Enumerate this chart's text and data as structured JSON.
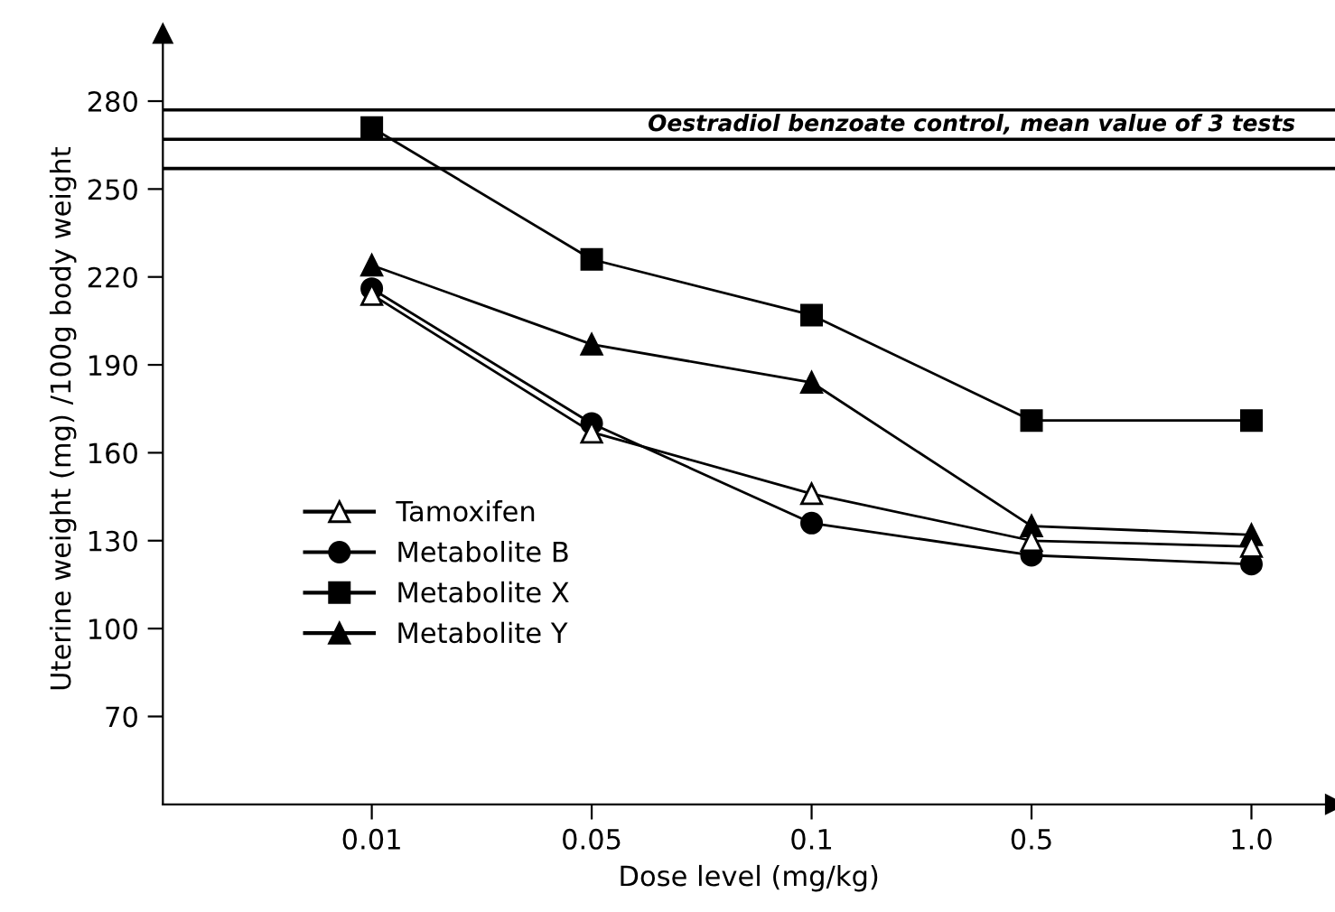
{
  "chart_data": {
    "type": "line",
    "xlabel": "Dose level (mg/kg)",
    "ylabel": "Uterine weight (mg) /100g body weight",
    "categories": [
      "0.01",
      "0.05",
      "0.1",
      "0.5",
      "1.0"
    ],
    "ylim": [
      40,
      303
    ],
    "yticks": [
      70,
      100,
      130,
      160,
      190,
      220,
      250,
      280
    ],
    "series": [
      {
        "name": "Tamoxifen",
        "color": "#000000",
        "marker": "triangle",
        "values": [
          214,
          167,
          146,
          130,
          128
        ]
      },
      {
        "name": "Metabolite B",
        "color": "#000000",
        "marker": "circle",
        "values": [
          216,
          170,
          136,
          125,
          122
        ]
      },
      {
        "name": "Metabolite X",
        "color": "#000000",
        "marker": "square",
        "values": [
          271,
          226,
          207,
          171,
          171
        ]
      },
      {
        "name": "Metabolite Y",
        "color": "#000000",
        "marker": "triangle",
        "values": [
          224,
          197,
          184,
          135,
          132
        ]
      }
    ],
    "ref_lines": [
      {
        "axis": "y",
        "value": 277,
        "color": "#000000"
      },
      {
        "axis": "y",
        "value": 267,
        "color": "#000000",
        "label": "Oestradiol benzoate control, mean value of 3 tests"
      },
      {
        "axis": "y",
        "value": 257,
        "color": "#000000"
      }
    ],
    "grid": false,
    "legend": "bottom left",
    "line_style": "solid"
  }
}
